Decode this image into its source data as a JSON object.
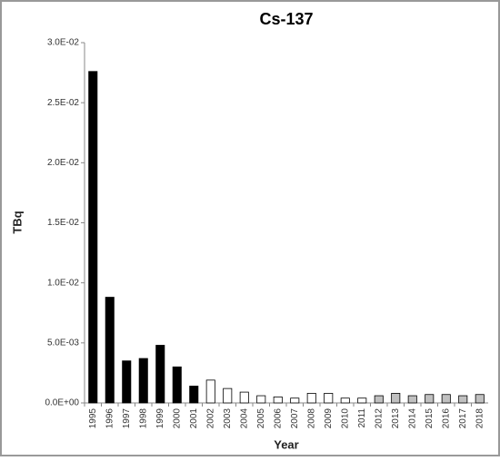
{
  "chart_data": {
    "type": "bar",
    "title": "Cs-137",
    "x_label": "Year",
    "y_label": "TBq",
    "categories": [
      "1995",
      "1996",
      "1997",
      "1998",
      "1999",
      "2000",
      "2001",
      "2002",
      "2003",
      "2004",
      "2005",
      "2006",
      "2007",
      "2008",
      "2009",
      "2010",
      "2011",
      "2012",
      "2013",
      "2014",
      "2015",
      "2016",
      "2017",
      "2018"
    ],
    "values": [
      0.0276,
      0.0088,
      0.0035,
      0.0037,
      0.0048,
      0.003,
      0.0014,
      0.0019,
      0.0012,
      0.0009,
      0.0006,
      0.0005,
      0.0004,
      0.0008,
      0.0008,
      0.0004,
      0.0004,
      0.0006,
      0.0008,
      0.0006,
      0.0007,
      0.0007,
      0.0006,
      0.0007
    ],
    "colors": [
      "#000000",
      "#000000",
      "#000000",
      "#000000",
      "#000000",
      "#000000",
      "#000000",
      "#ffffff",
      "#ffffff",
      "#ffffff",
      "#ffffff",
      "#ffffff",
      "#ffffff",
      "#ffffff",
      "#ffffff",
      "#ffffff",
      "#ffffff",
      "#c0c0c0",
      "#c0c0c0",
      "#c0c0c0",
      "#c0c0c0",
      "#c0c0c0",
      "#c0c0c0",
      "#c0c0c0"
    ],
    "ylim": [
      0,
      0.03
    ],
    "yticks": [
      {
        "value": 0,
        "label": "0.0E+00"
      },
      {
        "value": 0.005,
        "label": "5.0E-03"
      },
      {
        "value": 0.01,
        "label": "1.0E-02"
      },
      {
        "value": 0.015,
        "label": "1.5E-02"
      },
      {
        "value": 0.02,
        "label": "2.0E-02"
      },
      {
        "value": 0.025,
        "label": "2.5E-02"
      },
      {
        "value": 0.03,
        "label": "3.0E-02"
      }
    ],
    "grid": false
  }
}
